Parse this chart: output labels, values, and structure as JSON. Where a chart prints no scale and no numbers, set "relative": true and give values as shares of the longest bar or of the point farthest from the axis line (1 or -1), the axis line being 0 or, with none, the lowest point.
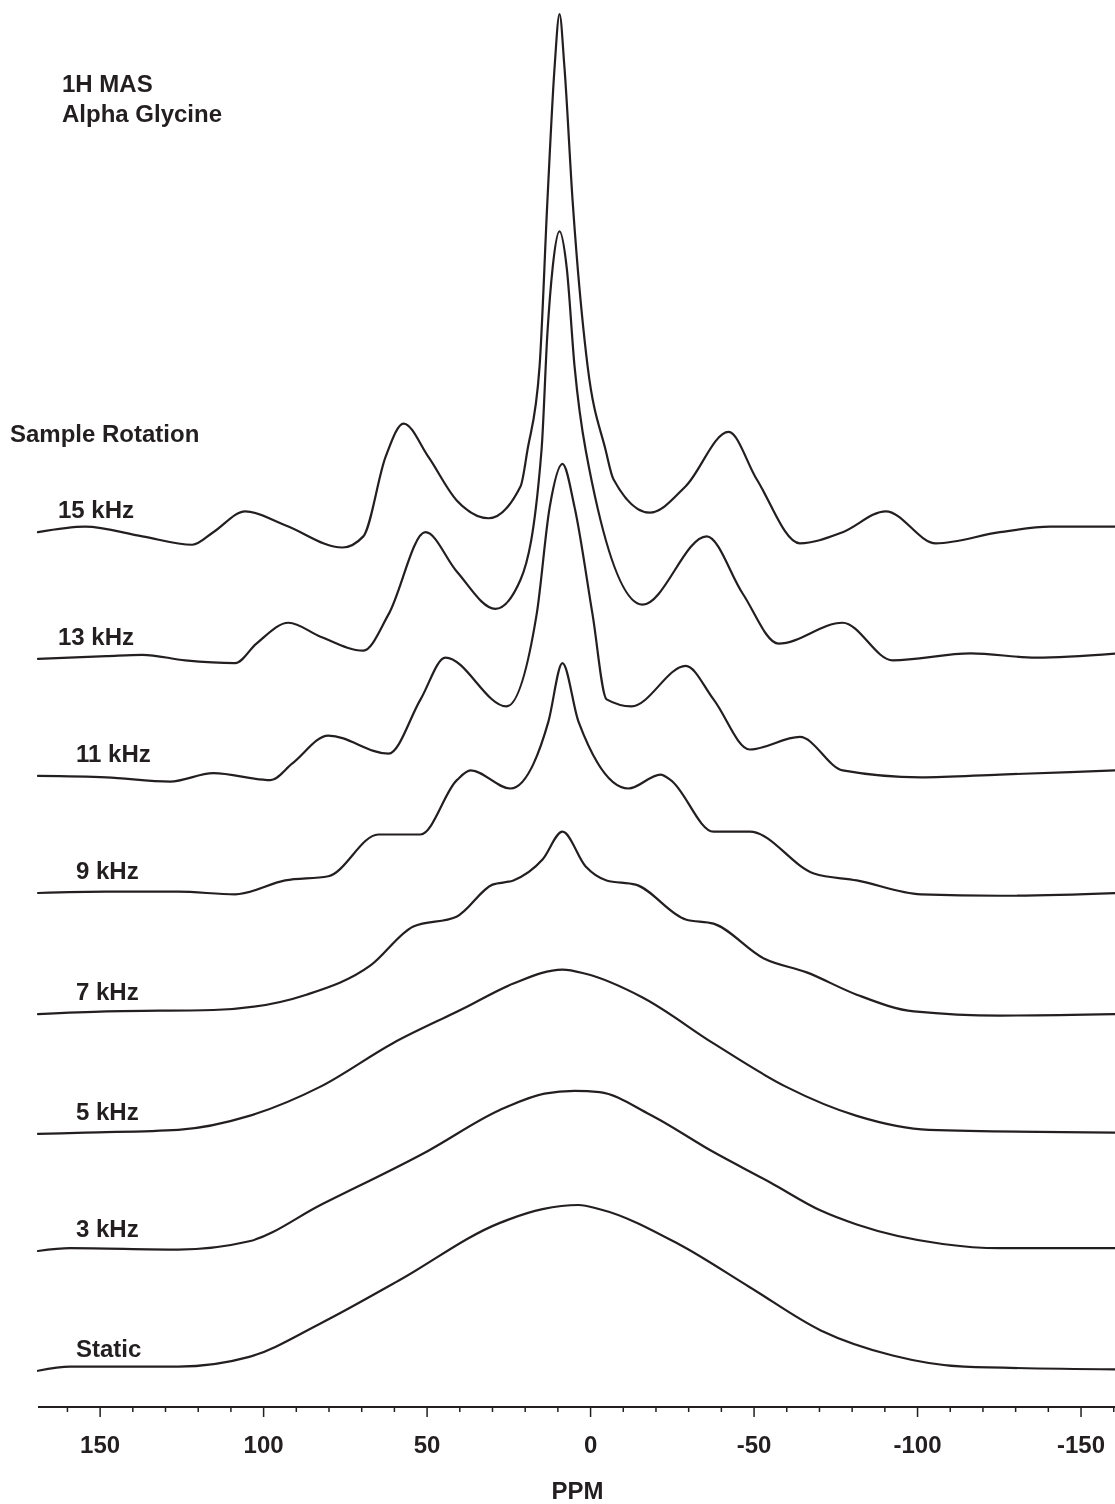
{
  "chart_data": {
    "type": "line",
    "title": "1H MAS",
    "subtitle": "Alpha Glycine",
    "xlabel": "PPM",
    "annotations": [
      "Sample Rotation"
    ],
    "relative": true,
    "tick_labels": "x",
    "xlim": [
      169,
      -161
    ],
    "xticks": [
      {
        "value": 160,
        "label": null
      },
      150,
      {
        "value": 140,
        "label": null
      },
      {
        "value": 130,
        "label": null
      },
      {
        "value": 120,
        "label": null
      },
      {
        "value": 110,
        "label": null
      },
      100,
      {
        "value": 90,
        "label": null
      },
      {
        "value": 80,
        "label": null
      },
      {
        "value": 70,
        "label": null
      },
      {
        "value": 60,
        "label": null
      },
      50,
      {
        "value": 40,
        "label": null
      },
      {
        "value": 30,
        "label": null
      },
      {
        "value": 20,
        "label": null
      },
      {
        "value": 10,
        "label": null
      },
      0,
      {
        "value": -10,
        "label": null
      },
      {
        "value": -20,
        "label": null
      },
      {
        "value": -30,
        "label": null
      },
      {
        "value": -40,
        "label": null
      },
      -50,
      {
        "value": -60,
        "label": null
      },
      {
        "value": -70,
        "label": null
      },
      {
        "value": -80,
        "label": null
      },
      {
        "value": -90,
        "label": null
      },
      -100,
      {
        "value": -110,
        "label": null
      },
      {
        "value": -120,
        "label": null
      },
      {
        "value": -130,
        "label": null
      },
      {
        "value": -140,
        "label": null
      },
      -150,
      {
        "value": -160,
        "label": null
      }
    ],
    "series": [
      {
        "name": "15 kHz",
        "color": "#231f20",
        "x": [
          169.0,
          154.6,
          137.1,
          121.8,
          115.4,
          105.6,
          93.4,
          75.9,
          69.5,
          62.7,
          57.2,
          49.6,
          41.0,
          31.2,
          21.4,
          19.3,
          15.6,
          13.2,
          11.0,
          9.5,
          8.0,
          5.5,
          0.9,
          -4.6,
          -7.0,
          -18.1,
          -29.1,
          -42.2,
          -50.8,
          -64.0,
          -77.1,
          -90.3,
          -105.6,
          -125.2,
          -140.5,
          -161.0
        ],
        "values": [
          0.628,
          0.632,
          0.625,
          0.619,
          0.628,
          0.643,
          0.633,
          0.617,
          0.625,
          0.682,
          0.706,
          0.682,
          0.651,
          0.638,
          0.661,
          0.687,
          0.747,
          0.866,
          0.962,
          1.0,
          0.962,
          0.866,
          0.747,
          0.687,
          0.666,
          0.642,
          0.661,
          0.7,
          0.666,
          0.62,
          0.628,
          0.643,
          0.62,
          0.628,
          0.632,
          0.632
        ]
      },
      {
        "name": "13 kHz",
        "color": "#231f20",
        "x": [
          169.0,
          148.1,
          137.1,
          124.0,
          108.7,
          102.2,
          92.4,
          82.6,
          69.5,
          61.8,
          50.5,
          41.0,
          29.1,
          21.4,
          15.0,
          13.2,
          11.6,
          9.5,
          7.3,
          4.9,
          1.5,
          -15.9,
          -35.5,
          -46.5,
          -57.5,
          -77.1,
          -92.4,
          -116.3,
          -136.2,
          -161.0
        ],
        "values": [
          0.537,
          0.539,
          0.54,
          0.536,
          0.534,
          0.548,
          0.563,
          0.553,
          0.543,
          0.569,
          0.628,
          0.6,
          0.573,
          0.594,
          0.687,
          0.771,
          0.818,
          0.844,
          0.818,
          0.747,
          0.687,
          0.576,
          0.625,
          0.584,
          0.548,
          0.563,
          0.536,
          0.541,
          0.538,
          0.541
        ]
      },
      {
        "name": "11 kHz",
        "color": "#231f20",
        "x": [
          169.0,
          148.1,
          128.6,
          115.4,
          97.9,
          91.2,
          80.2,
          61.8,
          52.0,
          44.4,
          25.7,
          16.5,
          12.5,
          8.6,
          4.9,
          -0.6,
          -4.9,
          -12.5,
          -29.1,
          -37.6,
          -48.7,
          -64.0,
          -77.1,
          -101.0,
          -125.2,
          -161.0
        ],
        "values": [
          0.453,
          0.452,
          0.449,
          0.455,
          0.45,
          0.462,
          0.482,
          0.469,
          0.508,
          0.538,
          0.503,
          0.569,
          0.646,
          0.677,
          0.646,
          0.569,
          0.508,
          0.503,
          0.532,
          0.508,
          0.472,
          0.481,
          0.457,
          0.452,
          0.454,
          0.457
        ]
      },
      {
        "name": "9 kHz",
        "color": "#231f20",
        "x": [
          169.0,
          148.1,
          126.1,
          108.7,
          93.4,
          80.2,
          64.9,
          52.0,
          40.9,
          36.7,
          24.5,
          12.9,
          8.6,
          3.7,
          -11.6,
          -21.4,
          -24.5,
          -37.6,
          -48.7,
          -68.3,
          -81.4,
          -101.0,
          -125.2,
          -161.0
        ],
        "values": [
          0.369,
          0.37,
          0.37,
          0.368,
          0.378,
          0.381,
          0.411,
          0.411,
          0.45,
          0.457,
          0.444,
          0.492,
          0.534,
          0.492,
          0.444,
          0.454,
          0.45,
          0.413,
          0.413,
          0.383,
          0.378,
          0.368,
          0.367,
          0.369
        ]
      },
      {
        "name": "7 kHz",
        "color": "#231f20",
        "x": [
          169.0,
          148.1,
          115.4,
          86.9,
          67.3,
          54.2,
          41.0,
          30.0,
          23.6,
          14.7,
          8.6,
          1.5,
          -4.9,
          -13.8,
          -29.1,
          -37.6,
          -53.0,
          -66.1,
          -81.4,
          -98.9,
          -125.2,
          -161.0
        ],
        "values": [
          0.282,
          0.284,
          0.285,
          0.296,
          0.317,
          0.345,
          0.352,
          0.375,
          0.378,
          0.393,
          0.413,
          0.388,
          0.378,
          0.375,
          0.35,
          0.347,
          0.322,
          0.312,
          0.296,
          0.284,
          0.281,
          0.282
        ]
      },
      {
        "name": "5 kHz",
        "color": "#231f20",
        "x": [
          169.0,
          154.6,
          126.1,
          104.4,
          82.6,
          60.6,
          38.9,
          23.6,
          8.6,
          1.5,
          -15.9,
          -37.6,
          -59.7,
          -81.4,
          -103.5,
          -161.0
        ],
        "values": [
          0.196,
          0.197,
          0.199,
          0.209,
          0.23,
          0.261,
          0.286,
          0.304,
          0.314,
          0.311,
          0.294,
          0.261,
          0.23,
          0.209,
          0.199,
          0.197
        ]
      },
      {
        "name": "3 kHz",
        "color": "#231f20",
        "x": [
          169.0,
          159.2,
          126.1,
          104.4,
          82.6,
          49.6,
          27.9,
          14.1,
          4.9,
          -2.8,
          -18.1,
          -37.6,
          -55.1,
          -70.4,
          -81.4,
          -107.7,
          -125.2,
          -161.0
        ],
        "values": [
          0.112,
          0.114,
          0.113,
          0.119,
          0.145,
          0.184,
          0.213,
          0.225,
          0.227,
          0.226,
          0.21,
          0.183,
          0.161,
          0.141,
          0.131,
          0.117,
          0.114,
          0.114
        ]
      },
      {
        "name": "Static",
        "color": "#231f20",
        "x": [
          169.0,
          159.2,
          126.1,
          104.4,
          82.6,
          58.5,
          27.9,
          14.7,
          3.7,
          -2.8,
          -26.9,
          -48.7,
          -70.4,
          -92.4,
          -114.2,
          -161.0
        ],
        "values": [
          0.026,
          0.029,
          0.029,
          0.036,
          0.06,
          0.091,
          0.132,
          0.142,
          0.145,
          0.142,
          0.117,
          0.086,
          0.055,
          0.037,
          0.029,
          0.027
        ]
      }
    ]
  }
}
